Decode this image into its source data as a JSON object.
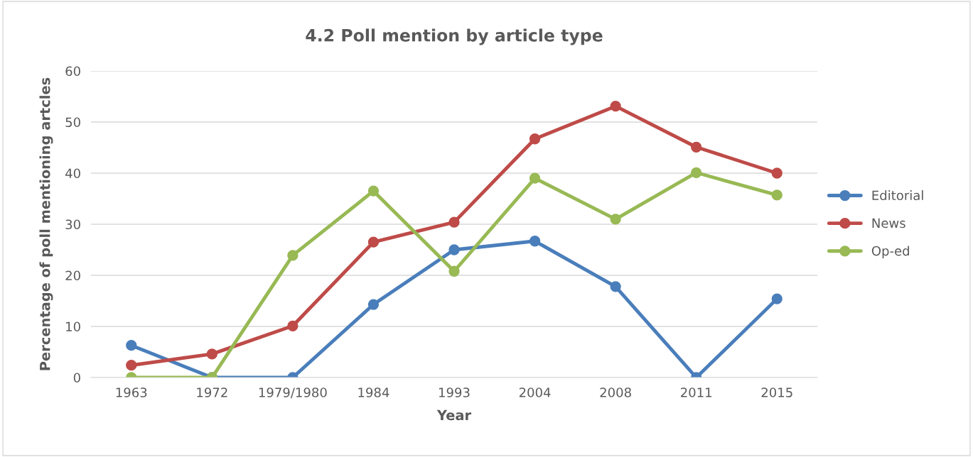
{
  "chart_data": {
    "type": "line",
    "title": "4.2 Poll mention by article type",
    "xlabel": "Year",
    "ylabel": "Percentage of poll mentioning artcles",
    "categories": [
      "1963",
      "1972",
      "1979/1980",
      "1984",
      "1993",
      "2004",
      "2008",
      "2011",
      "2015"
    ],
    "series": [
      {
        "name": "Editorial",
        "color": "#4a7ebb",
        "values": [
          6.3,
          0,
          0,
          14.3,
          25,
          26.7,
          17.8,
          0,
          15.4
        ]
      },
      {
        "name": "News",
        "color": "#be4b48",
        "values": [
          2.4,
          4.6,
          10.1,
          26.5,
          30.4,
          46.7,
          53.1,
          45.1,
          40
        ]
      },
      {
        "name": "Op-ed",
        "color": "#98b954",
        "values": [
          0,
          0,
          23.9,
          36.5,
          20.8,
          39,
          31,
          40.1,
          35.7
        ]
      }
    ],
    "ylim": [
      0,
      60
    ],
    "yticks": [
      0,
      10,
      20,
      30,
      40,
      50,
      60
    ],
    "grid": "y",
    "legend": "right",
    "marker": "circle",
    "line_style": "solid"
  }
}
